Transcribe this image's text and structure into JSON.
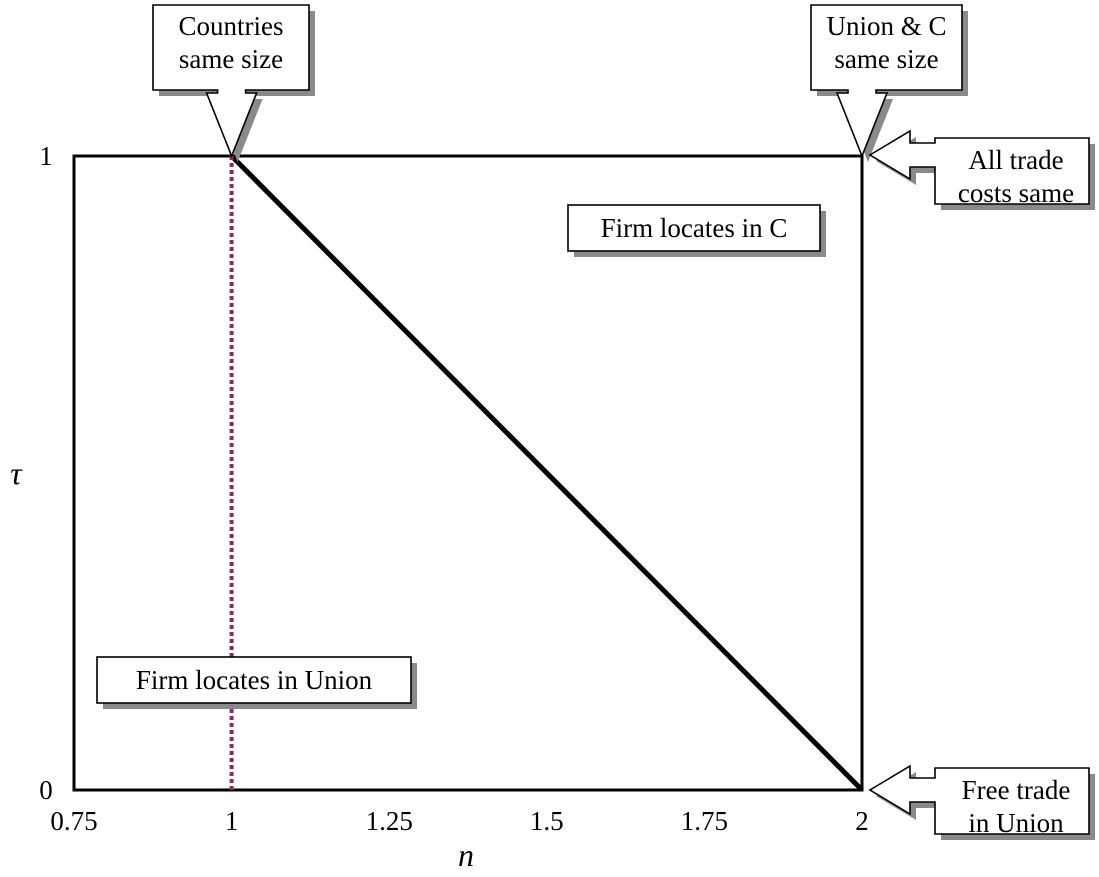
{
  "chart_data": {
    "type": "line",
    "title": "",
    "xlabel": "n",
    "ylabel": "τ",
    "xlim": [
      0.75,
      2
    ],
    "ylim": [
      0,
      1
    ],
    "x_ticks": [
      "0.75",
      "1",
      "1.25",
      "1.5",
      "1.75",
      "2"
    ],
    "y_ticks": [
      "0",
      "1"
    ],
    "grid": false,
    "series": [
      {
        "x": [
          1,
          2
        ],
        "y": [
          1,
          0
        ],
        "color": "#000000",
        "style": "solid"
      },
      {
        "x": [
          1,
          1
        ],
        "y": [
          0,
          1
        ],
        "color": "#8B2A6B",
        "style": "dotted"
      }
    ],
    "region_labels": [
      {
        "text": "Firm locates in C",
        "x": 1.75,
        "y": 0.89
      },
      {
        "text": "Firm locates in Union",
        "x": 1.01,
        "y": 0.15
      }
    ],
    "callouts": [
      {
        "lines": [
          "Countries",
          "same size"
        ],
        "points_to": "x=1 at top",
        "arrow": "down"
      },
      {
        "lines": [
          "Union & C",
          "same size"
        ],
        "points_to": "x=2 at top",
        "arrow": "down"
      },
      {
        "lines": [
          "All trade",
          "costs same"
        ],
        "points_to": "τ=1 at right",
        "arrow": "left"
      },
      {
        "lines": [
          "Free trade",
          "in Union"
        ],
        "points_to": "τ=0 at right",
        "arrow": "left"
      }
    ]
  }
}
